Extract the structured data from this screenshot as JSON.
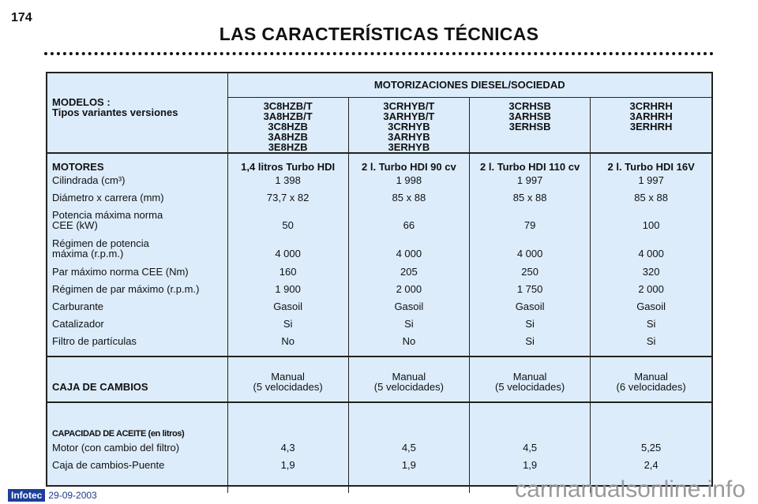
{
  "page_number": "174",
  "title": "LAS CARACTERÍSTICAS TÉCNICAS",
  "header": {
    "models_label": "MODELOS :",
    "variants_label": "Tipos variantes versiones",
    "group": "MOTORIZACIONES DIESEL/SOCIEDAD",
    "variants": [
      [
        "3C8HZB/T",
        "3A8HZB/T",
        "3C8HZB",
        "3A8HZB",
        "3E8HZB"
      ],
      [
        "3CRHYB/T",
        "3ARHYB/T",
        "3CRHYB",
        "3ARHYB",
        "3ERHYB"
      ],
      [
        "3CRHSB",
        "3ARHSB",
        "3ERHSB"
      ],
      [
        "3CRHRH",
        "3ARHRH",
        "3ERHRH"
      ]
    ]
  },
  "engines": {
    "label": "MOTORES",
    "values": [
      "1,4 litros  Turbo HDI",
      "2 l. Turbo HDI 90 cv",
      "2 l. Turbo HDI 110 cv",
      "2 l. Turbo HDI 16V"
    ]
  },
  "rows": [
    {
      "label": "Cilindrada (cm³)",
      "values": [
        "1 398",
        "1 998",
        "1 997",
        "1 997"
      ]
    },
    {
      "label": "Diámetro x carrera (mm)",
      "values": [
        "73,7 x 82",
        "85 x 88",
        "85 x 88",
        "85 x 88"
      ]
    },
    {
      "label": "Potencia máxima norma",
      "label2": "CEE (kW)",
      "values": [
        "50",
        "66",
        "79",
        "100"
      ]
    },
    {
      "label": "Régimen de potencia",
      "label2": "máxima (r.p.m.)",
      "values": [
        "4 000",
        "4 000",
        "4 000",
        "4 000"
      ]
    },
    {
      "label": "Par máximo norma CEE (Nm)",
      "values": [
        "160",
        "205",
        "250",
        "320"
      ]
    },
    {
      "label": "Régimen de par máximo (r.p.m.)",
      "values": [
        "1 900",
        "2 000",
        "1 750",
        "2 000"
      ]
    },
    {
      "label": "Carburante",
      "values": [
        "Gasoil",
        "Gasoil",
        "Gasoil",
        "Gasoil"
      ]
    },
    {
      "label": "Catalizador",
      "values": [
        "Si",
        "Si",
        "Si",
        "Si"
      ]
    },
    {
      "label": "Filtro de partículas",
      "values": [
        "No",
        "No",
        "Si",
        "Si"
      ]
    }
  ],
  "gearbox": {
    "label": "CAJA DE CAMBIOS",
    "values": [
      [
        "Manual",
        "(5 velocidades)"
      ],
      [
        "Manual",
        "(5 velocidades)"
      ],
      [
        "Manual",
        "(5 velocidades)"
      ],
      [
        "Manual",
        "(6 velocidades)"
      ]
    ]
  },
  "oil": {
    "label": "CAPACIDAD DE ACEITE (en litros)",
    "rows": [
      {
        "label": "Motor (con cambio del filtro)",
        "values": [
          "4,3",
          "4,5",
          "4,5",
          "5,25"
        ]
      },
      {
        "label": "Caja de cambios-Puente",
        "values": [
          "1,9",
          "1,9",
          "1,9",
          "2,4"
        ]
      }
    ]
  },
  "footer": {
    "logo": "Infotec",
    "date": "29-09-2003",
    "watermark": "carmanualsonline.info"
  }
}
